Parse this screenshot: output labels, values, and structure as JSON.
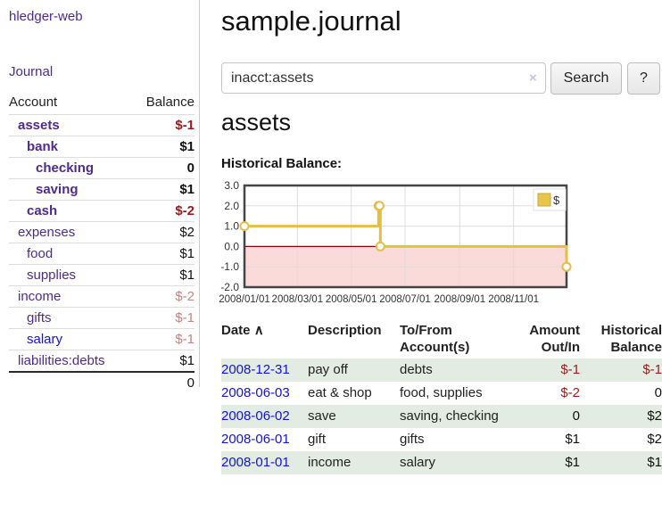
{
  "app": {
    "brand": "hledger-web",
    "nav_journal": "Journal"
  },
  "header": {
    "title": "sample.journal"
  },
  "search": {
    "value": "inacct:assets",
    "clear_icon": "×",
    "button_label": "Search",
    "help_label": "?"
  },
  "sidebar": {
    "columns": {
      "account": "Account",
      "balance": "Balance"
    },
    "accounts": [
      {
        "name": "assets",
        "balance": "$-1"
      },
      {
        "name": "bank",
        "balance": "$1"
      },
      {
        "name": "checking",
        "balance": "0"
      },
      {
        "name": "saving",
        "balance": "$1"
      },
      {
        "name": "cash",
        "balance": "$-2"
      },
      {
        "name": "expenses",
        "balance": "$2"
      },
      {
        "name": "food",
        "balance": "$1"
      },
      {
        "name": "supplies",
        "balance": "$1"
      },
      {
        "name": "income",
        "balance": "$-2"
      },
      {
        "name": "gifts",
        "balance": "$-1"
      },
      {
        "name": "salary",
        "balance": "$-1"
      },
      {
        "name": "liabilities:debts",
        "balance": "$1"
      }
    ],
    "total": "0"
  },
  "account_page": {
    "heading": "assets",
    "chart_label": "Historical Balance:"
  },
  "chart_data": {
    "type": "line",
    "step": true,
    "title": "Historical Balance:",
    "series": [
      {
        "name": "$",
        "points": [
          [
            "2008-01-01",
            1
          ],
          [
            "2008-06-01",
            2
          ],
          [
            "2008-06-02",
            2
          ],
          [
            "2008-06-03",
            0
          ],
          [
            "2008-12-31",
            -1
          ]
        ],
        "color": "#e6bd45"
      }
    ],
    "x_range": [
      "2008-01-01",
      "2008-12-31"
    ],
    "ylim": [
      -2,
      3
    ],
    "y_tick_values": [
      3,
      2,
      1,
      0,
      -1,
      -2
    ],
    "y_tick_labels": [
      "3.0",
      "2.0",
      "1.0",
      "0.0",
      "-1.0",
      "-2.0"
    ],
    "x_ticks": [
      "2008-01-01",
      "2008-03-01",
      "2008-05-01",
      "2008-07-01",
      "2008-09-01",
      "2008-11-01"
    ],
    "x_tick_labels": [
      "2008/01/01",
      "2008/03/01",
      "2008/05/01",
      "2008/07/01",
      "2008/09/01",
      "2008/11/01"
    ],
    "legend": {
      "label": "$",
      "position": "top-right"
    },
    "grid": true,
    "colors": {
      "negative_region": "#fbdada",
      "zero_line": "#8b0000",
      "gridline": "#dddddd",
      "border": "#454545"
    }
  },
  "register": {
    "sort_indicator": "∧",
    "columns": {
      "date": "Date",
      "description": "Description",
      "accounts": "To/From Account(s)",
      "amount": "Amount Out/In",
      "balance": "Historical Balance"
    },
    "rows": [
      {
        "date": "2008-12-31",
        "description": "pay off",
        "accounts": "debts",
        "amount": "$-1",
        "balance": "$-1"
      },
      {
        "date": "2008-06-03",
        "description": "eat & shop",
        "accounts": "food, supplies",
        "amount": "$-2",
        "balance": "0"
      },
      {
        "date": "2008-06-02",
        "description": "save",
        "accounts": "saving, checking",
        "amount": "0",
        "balance": "$2"
      },
      {
        "date": "2008-06-01",
        "description": "gift",
        "accounts": "gifts",
        "amount": "$1",
        "balance": "$2"
      },
      {
        "date": "2008-01-01",
        "description": "income",
        "accounts": "salary",
        "amount": "$1",
        "balance": "$1"
      }
    ]
  }
}
